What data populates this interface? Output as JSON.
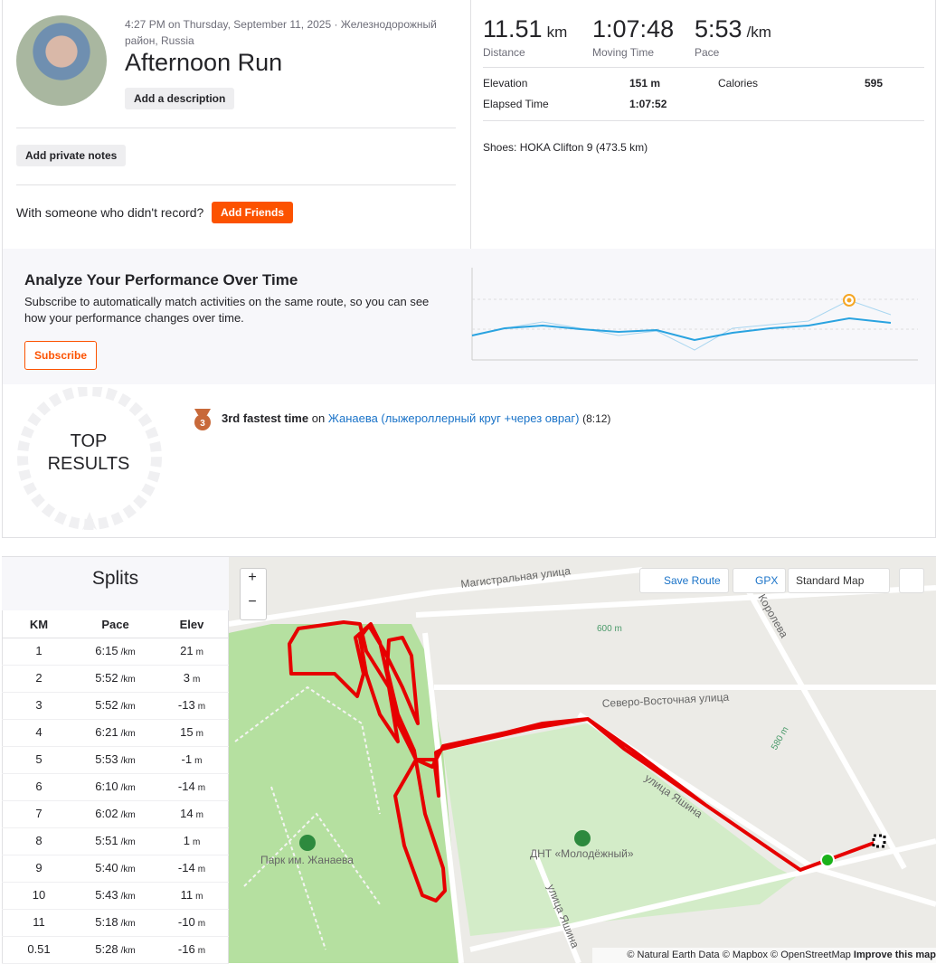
{
  "header": {
    "datetime": "4:27 PM on Thursday, September 11, 2025 · Железнодорожный район, Russia",
    "title": "Afternoon Run",
    "add_description": "Add a description",
    "add_notes": "Add private notes",
    "with_someone": "With someone who didn't record?",
    "add_friends": "Add Friends"
  },
  "stats": {
    "primary": [
      {
        "value": "11.51",
        "unit": "km",
        "label": "Distance"
      },
      {
        "value": "1:07:48",
        "unit": "",
        "label": "Moving Time"
      },
      {
        "value": "5:53",
        "unit": "/km",
        "label": "Pace"
      }
    ],
    "elevation_label": "Elevation",
    "elevation": "151 m",
    "calories_label": "Calories",
    "calories": "595",
    "elapsed_label": "Elapsed Time",
    "elapsed": "1:07:52",
    "shoes": "Shoes: HOKA Clifton 9 (473.5 km)"
  },
  "upsell": {
    "title": "Analyze Your Performance Over Time",
    "text": "Subscribe to automatically match activities on the same route, so you can see how your performance changes over time.",
    "button": "Subscribe"
  },
  "top_results": {
    "label_1": "TOP",
    "label_2": "RESULTS",
    "medal": "3",
    "rank": "3rd fastest time",
    "on": "on",
    "segment": "Жанаева (лыжероллерный круг +через овраг)",
    "time": "(8:12)"
  },
  "splits": {
    "title": "Splits",
    "headers": [
      "KM",
      "Pace",
      "Elev"
    ],
    "rows": [
      {
        "km": "1",
        "pace": "6:15",
        "pace_unit": "/km",
        "elev": "21",
        "elev_unit": "m"
      },
      {
        "km": "2",
        "pace": "5:52",
        "pace_unit": "/km",
        "elev": "3",
        "elev_unit": "m"
      },
      {
        "km": "3",
        "pace": "5:52",
        "pace_unit": "/km",
        "elev": "-13",
        "elev_unit": "m"
      },
      {
        "km": "4",
        "pace": "6:21",
        "pace_unit": "/km",
        "elev": "15",
        "elev_unit": "m"
      },
      {
        "km": "5",
        "pace": "5:53",
        "pace_unit": "/km",
        "elev": "-1",
        "elev_unit": "m"
      },
      {
        "km": "6",
        "pace": "6:10",
        "pace_unit": "/km",
        "elev": "-14",
        "elev_unit": "m"
      },
      {
        "km": "7",
        "pace": "6:02",
        "pace_unit": "/km",
        "elev": "14",
        "elev_unit": "m"
      },
      {
        "km": "8",
        "pace": "5:51",
        "pace_unit": "/km",
        "elev": "1",
        "elev_unit": "m"
      },
      {
        "km": "9",
        "pace": "5:40",
        "pace_unit": "/km",
        "elev": "-14",
        "elev_unit": "m"
      },
      {
        "km": "10",
        "pace": "5:43",
        "pace_unit": "/km",
        "elev": "11",
        "elev_unit": "m"
      },
      {
        "km": "11",
        "pace": "5:18",
        "pace_unit": "/km",
        "elev": "-10",
        "elev_unit": "m"
      },
      {
        "km": "0.51",
        "pace": "5:28",
        "pace_unit": "/km",
        "elev": "-16",
        "elev_unit": "m"
      }
    ]
  },
  "map": {
    "zoom_in": "+",
    "zoom_out": "−",
    "save_route": "Save Route",
    "gpx": "GPX",
    "style": "Standard Map",
    "attribution": "© Natural Earth Data © Mapbox © OpenStreetMap",
    "improve": "Improve this map",
    "labels": {
      "street_1": "Магистральная улица",
      "street_2": "Северо-Восточная улица",
      "street_3": "улица Яшина",
      "street_4": "улица Яшина",
      "street_5": "Королева",
      "contour_1": "600 m",
      "contour_2": "580 m",
      "park": "Парк им. Жанаева",
      "dnt": "ДНТ «Молодёжный»"
    }
  }
}
